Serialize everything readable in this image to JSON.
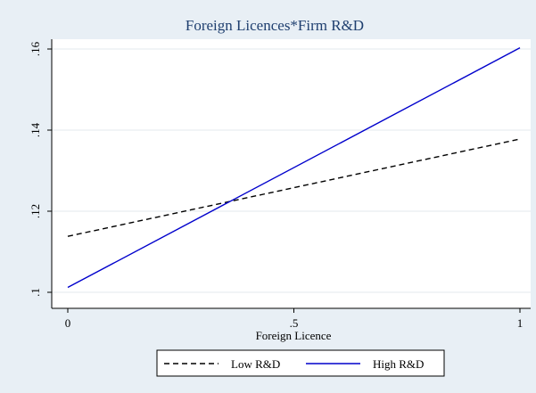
{
  "chart_data": {
    "type": "line",
    "title": "Foreign Licences*Firm R&D",
    "xlabel": "Foreign Licence",
    "ylabel": "",
    "xlim": [
      0,
      1
    ],
    "ylim": [
      0.1,
      0.16
    ],
    "x_ticks": [
      {
        "value": 0,
        "label": "0"
      },
      {
        "value": 0.5,
        "label": ".5"
      },
      {
        "value": 1,
        "label": "1"
      }
    ],
    "y_ticks": [
      {
        "value": 0.1,
        "label": ".1"
      },
      {
        "value": 0.12,
        "label": ".12"
      },
      {
        "value": 0.14,
        "label": ".14"
      },
      {
        "value": 0.16,
        "label": ".16"
      }
    ],
    "grid": true,
    "legend_position": "bottom",
    "series": [
      {
        "name": "Low R&D",
        "x": [
          0,
          1
        ],
        "y": [
          0.1138,
          0.1378
        ],
        "color": "#000000",
        "dash": "dashed"
      },
      {
        "name": "High R&D",
        "x": [
          0,
          1
        ],
        "y": [
          0.1012,
          0.1603
        ],
        "color": "#0000cc",
        "dash": "solid"
      }
    ]
  }
}
